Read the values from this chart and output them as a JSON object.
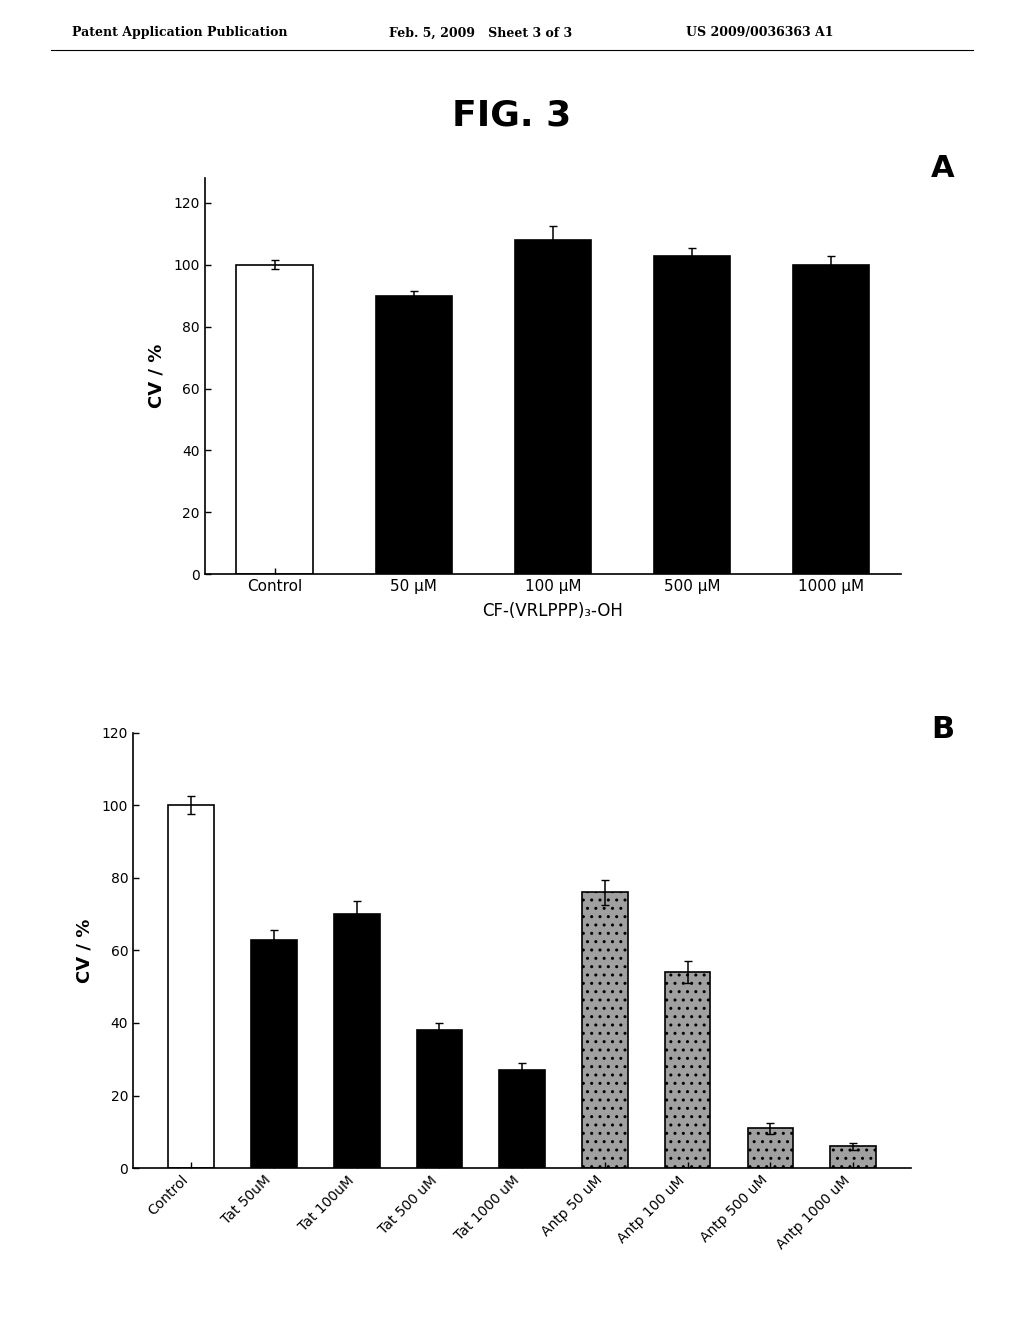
{
  "patent_header_left": "Patent Application Publication",
  "patent_header_mid": "Feb. 5, 2009   Sheet 3 of 3",
  "patent_header_right": "US 2009/0036363 A1",
  "fig_title": "FIG. 3",
  "panel_A": {
    "label": "A",
    "categories": [
      "Control",
      "50 μM",
      "100 μM",
      "500 μM",
      "1000 μM"
    ],
    "values": [
      100,
      90,
      108,
      103,
      100
    ],
    "errors": [
      1.5,
      1.5,
      4.5,
      2.5,
      3.0
    ],
    "colors": [
      "white",
      "black",
      "black",
      "black",
      "black"
    ],
    "edgecolors": [
      "black",
      "black",
      "black",
      "black",
      "black"
    ],
    "hatch": [
      "",
      "",
      "",
      "",
      ""
    ],
    "xlabel": "CF-(VRLPPP)₃-OH",
    "ylabel": "CV / %",
    "ylim": [
      0,
      128
    ],
    "yticks": [
      0,
      20,
      40,
      60,
      80,
      100,
      120
    ]
  },
  "panel_B": {
    "label": "B",
    "categories": [
      "Control",
      "Tat 50uM",
      "Tat 100uM",
      "Tat 500 uM",
      "Tat 1000 uM",
      "Antp 50 uM",
      "Antp 100 uM",
      "Antp 500 uM",
      "Antp 1000 uM"
    ],
    "values": [
      100,
      63,
      70,
      38,
      27,
      76,
      54,
      11,
      6
    ],
    "errors": [
      2.5,
      2.5,
      3.5,
      2.0,
      2.0,
      3.5,
      3.0,
      1.5,
      1.0
    ],
    "colors": [
      "white",
      "black",
      "black",
      "black",
      "black",
      "#a0a0a0",
      "#a0a0a0",
      "#a0a0a0",
      "#a0a0a0"
    ],
    "edgecolors": [
      "black",
      "black",
      "black",
      "black",
      "black",
      "black",
      "black",
      "black",
      "black"
    ],
    "hatch": [
      "",
      "",
      "",
      "",
      "",
      "..",
      "..",
      "..",
      ".."
    ],
    "ylabel": "CV / %",
    "ylim": [
      0,
      120
    ],
    "yticks": [
      0,
      20,
      40,
      60,
      80,
      100,
      120
    ]
  },
  "background_color": "#ffffff",
  "bar_width": 0.55
}
